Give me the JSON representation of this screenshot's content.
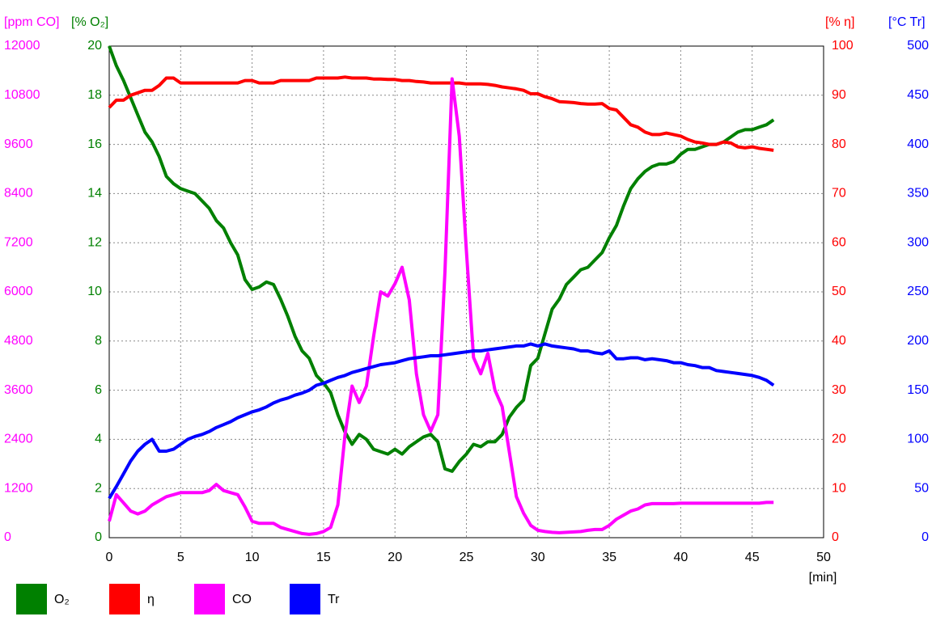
{
  "chart_data": {
    "type": "line",
    "x_label": "[min]",
    "xlim": [
      0,
      50
    ],
    "xticks": [
      0,
      5,
      10,
      15,
      20,
      25,
      30,
      35,
      40,
      45,
      50
    ],
    "grid": true,
    "axes": [
      {
        "label": "[ppm CO]",
        "color": "#ff00ff",
        "side": "left",
        "lim": [
          0,
          12000
        ],
        "ticks": [
          0,
          1200,
          2400,
          3600,
          4800,
          6000,
          7200,
          8400,
          9600,
          10800,
          12000
        ]
      },
      {
        "label": "[% O₂]",
        "color": "#008000",
        "side": "left",
        "lim": [
          0,
          20
        ],
        "ticks": [
          0,
          2,
          4,
          6,
          8,
          10,
          12,
          14,
          16,
          18,
          20
        ]
      },
      {
        "label": "[% η]",
        "color": "#ff0000",
        "side": "right",
        "lim": [
          0,
          100
        ],
        "ticks": [
          0,
          10,
          20,
          30,
          40,
          50,
          60,
          70,
          80,
          90,
          100
        ]
      },
      {
        "label": "[°C Tr]",
        "color": "#0000ff",
        "side": "right",
        "lim": [
          0,
          500
        ],
        "ticks": [
          0,
          50,
          100,
          150,
          200,
          250,
          300,
          350,
          400,
          450,
          500
        ]
      }
    ],
    "x": [
      0,
      0.5,
      1,
      1.5,
      2,
      2.5,
      3,
      3.5,
      4,
      4.5,
      5,
      5.5,
      6,
      6.5,
      7,
      7.5,
      8,
      8.5,
      9,
      9.5,
      10,
      10.5,
      11,
      11.5,
      12,
      12.5,
      13,
      13.5,
      14,
      14.5,
      15,
      15.5,
      16,
      16.5,
      17,
      17.5,
      18,
      18.5,
      19,
      19.5,
      20,
      20.5,
      21,
      21.5,
      22,
      22.5,
      23,
      23.5,
      24,
      24.5,
      25,
      25.5,
      26,
      26.5,
      27,
      27.5,
      28,
      28.5,
      29,
      29.5,
      30,
      30.5,
      31,
      31.5,
      32,
      32.5,
      33,
      33.5,
      34,
      34.5,
      35,
      35.5,
      36,
      36.5,
      37,
      37.5,
      38,
      38.5,
      39,
      39.5,
      40,
      40.5,
      41,
      41.5,
      42,
      42.5,
      43,
      43.5,
      44,
      44.5,
      45,
      45.5,
      46,
      46.5
    ],
    "series": [
      {
        "name": "O₂",
        "color": "#008000",
        "axis": 1,
        "values": [
          20,
          19.2,
          18.6,
          17.9,
          17.2,
          16.5,
          16.1,
          15.5,
          14.7,
          14.4,
          14.2,
          14.1,
          14.0,
          13.7,
          13.4,
          12.9,
          12.6,
          12.0,
          11.5,
          10.5,
          10.1,
          10.2,
          10.4,
          10.3,
          9.7,
          9.0,
          8.2,
          7.6,
          7.3,
          6.6,
          6.3,
          5.9,
          5.0,
          4.3,
          3.8,
          4.2,
          4.0,
          3.6,
          3.5,
          3.4,
          3.6,
          3.4,
          3.7,
          3.9,
          4.1,
          4.2,
          3.9,
          2.8,
          2.7,
          3.1,
          3.4,
          3.8,
          3.7,
          3.9,
          3.9,
          4.2,
          4.9,
          5.3,
          5.6,
          7.0,
          7.3,
          8.3,
          9.3,
          9.7,
          10.3,
          10.6,
          10.9,
          11.0,
          11.3,
          11.6,
          12.2,
          12.7,
          13.5,
          14.2,
          14.6,
          14.9,
          15.1,
          15.2,
          15.2,
          15.3,
          15.6,
          15.8,
          15.8,
          15.9,
          16.0,
          16.0,
          16.1,
          16.3,
          16.5,
          16.6,
          16.6,
          16.7,
          16.8,
          17.0
        ]
      },
      {
        "name": "η",
        "color": "#ff0000",
        "axis": 2,
        "values": [
          87.5,
          89,
          89,
          90,
          90.5,
          91,
          91,
          92,
          93.5,
          93.5,
          92.5,
          92.5,
          92.5,
          92.5,
          92.5,
          92.5,
          92.5,
          92.5,
          92.5,
          93,
          93,
          92.5,
          92.5,
          92.5,
          93,
          93,
          93,
          93,
          93,
          93.5,
          93.5,
          93.5,
          93.5,
          93.7,
          93.5,
          93.5,
          93.5,
          93.3,
          93.3,
          93.2,
          93.2,
          93,
          93,
          92.8,
          92.7,
          92.5,
          92.5,
          92.5,
          92.5,
          92.5,
          92.3,
          92.3,
          92.3,
          92.2,
          92,
          91.7,
          91.5,
          91.3,
          91,
          90.3,
          90.3,
          89.7,
          89.3,
          88.7,
          88.6,
          88.5,
          88.3,
          88.2,
          88.2,
          88.3,
          87.3,
          87,
          85.5,
          84,
          83.5,
          82.5,
          82,
          82,
          82.3,
          82,
          81.7,
          81,
          80.5,
          80.3,
          80,
          80,
          80.5,
          80.3,
          79.5,
          79.3,
          79.5,
          79.2,
          79,
          78.8
        ]
      },
      {
        "name": "CO",
        "color": "#ff00ff",
        "axis": 0,
        "values": [
          400,
          1050,
          850,
          650,
          580,
          650,
          800,
          900,
          1000,
          1050,
          1100,
          1100,
          1100,
          1100,
          1150,
          1300,
          1150,
          1100,
          1050,
          750,
          400,
          350,
          350,
          350,
          250,
          200,
          150,
          100,
          80,
          100,
          150,
          250,
          800,
          2500,
          3700,
          3300,
          3700,
          4900,
          6000,
          5900,
          6200,
          6600,
          5800,
          4000,
          3000,
          2600,
          3000,
          6500,
          11200,
          9800,
          7000,
          4400,
          4000,
          4500,
          3600,
          3200,
          2100,
          1000,
          600,
          300,
          180,
          150,
          130,
          120,
          130,
          140,
          150,
          180,
          200,
          200,
          300,
          450,
          550,
          650,
          700,
          800,
          830,
          830,
          830,
          830,
          840,
          840,
          840,
          840,
          840,
          840,
          840,
          840,
          840,
          840,
          840,
          840,
          860,
          860
        ]
      },
      {
        "name": "Tr",
        "color": "#0000ff",
        "axis": 3,
        "values": [
          40,
          52,
          65,
          78,
          88,
          95,
          100,
          88,
          88,
          90,
          95,
          100,
          103,
          105,
          108,
          112,
          115,
          118,
          122,
          125,
          128,
          130,
          133,
          137,
          140,
          142,
          145,
          147,
          150,
          155,
          157,
          160,
          163,
          165,
          168,
          170,
          172,
          174,
          176,
          177,
          178,
          180,
          182,
          183,
          184,
          185,
          185,
          186,
          187,
          188,
          189,
          190,
          190,
          191,
          192,
          193,
          194,
          195,
          195,
          197,
          195,
          197,
          195,
          194,
          193,
          192,
          190,
          190,
          188,
          187,
          190,
          182,
          182,
          183,
          183,
          181,
          182,
          181,
          180,
          178,
          178,
          176,
          175,
          173,
          173,
          170,
          169,
          168,
          167,
          166,
          165,
          163,
          160,
          155
        ]
      }
    ]
  }
}
